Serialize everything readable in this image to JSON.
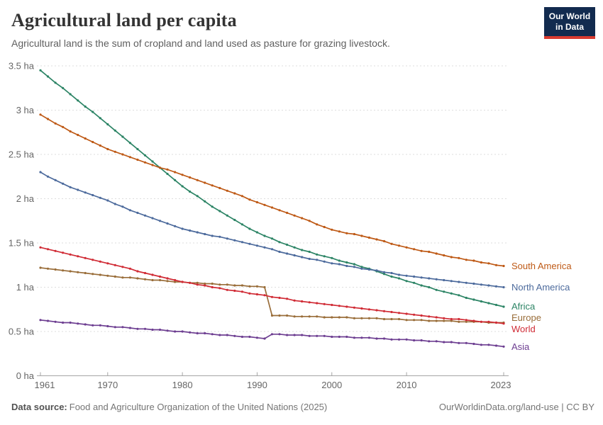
{
  "header": {
    "title": "Agricultural land per capita",
    "subtitle": "Agricultural land is the sum of cropland and land used as pasture for grazing livestock.",
    "logo": {
      "line1": "Our World",
      "line2": "in Data"
    }
  },
  "footer": {
    "source_label": "Data source:",
    "source_text": "Food and Agriculture Organization of the United Nations (2025)",
    "credit": "OurWorldinData.org/land-use | CC BY"
  },
  "colors": {
    "grid": "#dedede",
    "axis": "#a5a5a5",
    "tick_text": "#666666"
  },
  "chart_data": {
    "type": "line",
    "title": "Agricultural land per capita",
    "subtitle": "Agricultural land is the sum of cropland and land used as pasture for grazing livestock.",
    "unit": "ha",
    "grid": "dashed-horizontal",
    "legend_position": "right-of-line-ends",
    "years_range": [
      1961,
      2023
    ],
    "x_axis": {
      "tick_years": [
        1961,
        1970,
        1980,
        1990,
        2000,
        2010,
        2023
      ],
      "tick_labels": [
        "1961",
        "1970",
        "1980",
        "1990",
        "2000",
        "2010",
        "2023"
      ]
    },
    "y_axis": {
      "range": [
        0,
        3.5
      ],
      "ticks": [
        0,
        0.5,
        1,
        1.5,
        2,
        2.5,
        3,
        3.5
      ],
      "tick_labels": [
        "0 ha",
        "0.5 ha",
        "1 ha",
        "1.5 ha",
        "2 ha",
        "2.5 ha",
        "3 ha",
        "3.5 ha"
      ]
    },
    "series": [
      {
        "name": "Africa",
        "color": "#2C8465",
        "values": [
          3.45,
          3.38,
          3.31,
          3.25,
          3.18,
          3.11,
          3.04,
          2.98,
          2.91,
          2.84,
          2.77,
          2.7,
          2.63,
          2.56,
          2.49,
          2.42,
          2.35,
          2.28,
          2.21,
          2.14,
          2.08,
          2.03,
          1.97,
          1.91,
          1.86,
          1.81,
          1.76,
          1.71,
          1.66,
          1.62,
          1.58,
          1.55,
          1.51,
          1.48,
          1.45,
          1.42,
          1.4,
          1.37,
          1.35,
          1.33,
          1.3,
          1.28,
          1.26,
          1.23,
          1.21,
          1.18,
          1.15,
          1.12,
          1.1,
          1.07,
          1.05,
          1.02,
          1.0,
          0.97,
          0.95,
          0.93,
          0.91,
          0.88,
          0.86,
          0.84,
          0.82,
          0.8,
          0.78
        ]
      },
      {
        "name": "South America",
        "color": "#BE5915",
        "values": [
          2.95,
          2.9,
          2.85,
          2.81,
          2.76,
          2.72,
          2.68,
          2.64,
          2.6,
          2.56,
          2.53,
          2.5,
          2.47,
          2.44,
          2.41,
          2.38,
          2.35,
          2.33,
          2.3,
          2.27,
          2.24,
          2.21,
          2.18,
          2.15,
          2.12,
          2.09,
          2.06,
          2.03,
          1.99,
          1.96,
          1.93,
          1.9,
          1.87,
          1.84,
          1.81,
          1.78,
          1.75,
          1.71,
          1.68,
          1.65,
          1.63,
          1.61,
          1.6,
          1.58,
          1.56,
          1.54,
          1.52,
          1.49,
          1.47,
          1.45,
          1.43,
          1.41,
          1.4,
          1.38,
          1.36,
          1.34,
          1.33,
          1.31,
          1.3,
          1.28,
          1.27,
          1.25,
          1.24
        ]
      },
      {
        "name": "North America",
        "color": "#4C6A9C",
        "values": [
          2.3,
          2.25,
          2.21,
          2.17,
          2.13,
          2.1,
          2.07,
          2.04,
          2.01,
          1.98,
          1.94,
          1.91,
          1.87,
          1.84,
          1.81,
          1.78,
          1.75,
          1.72,
          1.69,
          1.66,
          1.64,
          1.62,
          1.6,
          1.58,
          1.57,
          1.55,
          1.53,
          1.51,
          1.49,
          1.47,
          1.45,
          1.43,
          1.4,
          1.38,
          1.36,
          1.34,
          1.32,
          1.31,
          1.29,
          1.27,
          1.26,
          1.24,
          1.23,
          1.21,
          1.2,
          1.19,
          1.17,
          1.16,
          1.14,
          1.13,
          1.12,
          1.11,
          1.1,
          1.09,
          1.08,
          1.07,
          1.06,
          1.05,
          1.04,
          1.03,
          1.02,
          1.01,
          1.0
        ]
      },
      {
        "name": "Europe",
        "color": "#996D39",
        "values": [
          1.22,
          1.21,
          1.2,
          1.19,
          1.18,
          1.17,
          1.16,
          1.15,
          1.14,
          1.13,
          1.12,
          1.11,
          1.11,
          1.1,
          1.09,
          1.08,
          1.08,
          1.07,
          1.06,
          1.06,
          1.05,
          1.05,
          1.04,
          1.04,
          1.03,
          1.03,
          1.02,
          1.02,
          1.01,
          1.01,
          1.0,
          0.68,
          0.68,
          0.68,
          0.67,
          0.67,
          0.67,
          0.67,
          0.66,
          0.66,
          0.66,
          0.66,
          0.65,
          0.65,
          0.65,
          0.65,
          0.64,
          0.64,
          0.64,
          0.63,
          0.63,
          0.63,
          0.62,
          0.62,
          0.62,
          0.62,
          0.61,
          0.61,
          0.61,
          0.61,
          0.6,
          0.6,
          0.6
        ]
      },
      {
        "name": "World",
        "color": "#D02B35",
        "values": [
          1.45,
          1.43,
          1.41,
          1.39,
          1.37,
          1.35,
          1.33,
          1.31,
          1.29,
          1.27,
          1.25,
          1.23,
          1.21,
          1.18,
          1.16,
          1.14,
          1.12,
          1.1,
          1.08,
          1.06,
          1.05,
          1.03,
          1.02,
          1.0,
          0.99,
          0.97,
          0.96,
          0.95,
          0.93,
          0.92,
          0.91,
          0.89,
          0.88,
          0.87,
          0.85,
          0.84,
          0.83,
          0.82,
          0.81,
          0.8,
          0.79,
          0.78,
          0.77,
          0.76,
          0.75,
          0.74,
          0.73,
          0.72,
          0.71,
          0.7,
          0.69,
          0.68,
          0.67,
          0.66,
          0.65,
          0.64,
          0.64,
          0.63,
          0.62,
          0.61,
          0.61,
          0.6,
          0.59
        ]
      },
      {
        "name": "Asia",
        "color": "#6D3E91",
        "values": [
          0.63,
          0.62,
          0.61,
          0.6,
          0.6,
          0.59,
          0.58,
          0.57,
          0.57,
          0.56,
          0.55,
          0.55,
          0.54,
          0.53,
          0.53,
          0.52,
          0.52,
          0.51,
          0.5,
          0.5,
          0.49,
          0.48,
          0.48,
          0.47,
          0.46,
          0.46,
          0.45,
          0.44,
          0.44,
          0.43,
          0.42,
          0.47,
          0.47,
          0.46,
          0.46,
          0.46,
          0.45,
          0.45,
          0.45,
          0.44,
          0.44,
          0.44,
          0.43,
          0.43,
          0.43,
          0.42,
          0.42,
          0.41,
          0.41,
          0.41,
          0.4,
          0.4,
          0.39,
          0.39,
          0.38,
          0.38,
          0.37,
          0.37,
          0.36,
          0.35,
          0.35,
          0.34,
          0.33
        ]
      }
    ]
  }
}
